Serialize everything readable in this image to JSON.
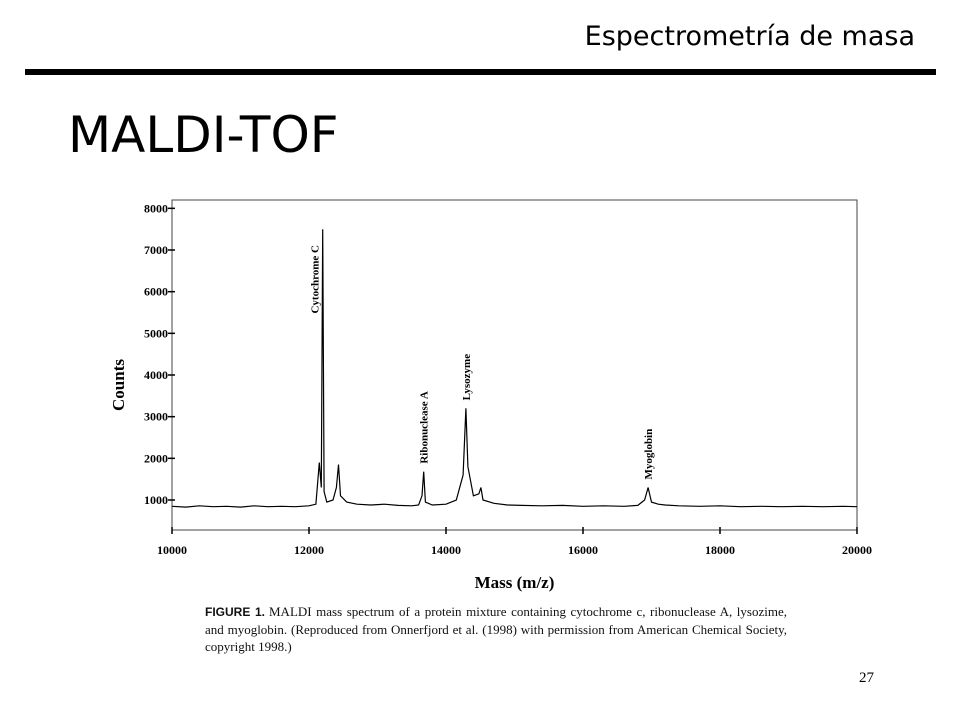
{
  "header": {
    "section": "Espectrometría de masa"
  },
  "title": "MALDI-TOF",
  "chart_data": {
    "type": "line",
    "x_label": "Mass (m/z)",
    "y_label": "Counts",
    "color": "#000000",
    "xlim": [
      10000,
      20000
    ],
    "xticks": [
      10000,
      12000,
      14000,
      16000,
      18000,
      20000
    ],
    "ylim": [
      280,
      8200
    ],
    "yticks": [
      1000,
      2000,
      3000,
      4000,
      5000,
      6000,
      7000,
      8000
    ],
    "x": [
      10000,
      10200,
      10400,
      10600,
      10800,
      11000,
      11200,
      11400,
      11600,
      11800,
      12000,
      12100,
      12150,
      12180,
      12200,
      12220,
      12260,
      12350,
      12400,
      12430,
      12460,
      12550,
      12700,
      12900,
      13100,
      13300,
      13500,
      13600,
      13650,
      13675,
      13700,
      13800,
      14000,
      14150,
      14250,
      14290,
      14320,
      14400,
      14480,
      14510,
      14540,
      14700,
      14900,
      15100,
      15400,
      15700,
      16000,
      16300,
      16600,
      16800,
      16900,
      16950,
      17000,
      17100,
      17200,
      17400,
      17700,
      18000,
      18300,
      18600,
      18900,
      19200,
      19500,
      19800,
      20000
    ],
    "values": [
      850,
      830,
      860,
      840,
      850,
      830,
      860,
      840,
      850,
      840,
      860,
      900,
      1900,
      1300,
      7500,
      1200,
      950,
      1000,
      1300,
      1850,
      1100,
      950,
      900,
      880,
      900,
      870,
      860,
      880,
      1100,
      1680,
      950,
      880,
      900,
      1000,
      1600,
      3200,
      1800,
      1100,
      1150,
      1300,
      1000,
      920,
      880,
      870,
      860,
      870,
      850,
      860,
      850,
      870,
      1000,
      1300,
      950,
      900,
      880,
      860,
      850,
      860,
      840,
      850,
      840,
      850,
      840,
      850,
      840
    ],
    "annotations": [
      {
        "text": "Cytochrome C",
        "x": 12200
      },
      {
        "text": "Ribonuclease A",
        "x": 13675
      },
      {
        "text": "Lysozyme",
        "x": 14290
      },
      {
        "text": "Myoglobin",
        "x": 16950
      }
    ]
  },
  "caption": {
    "label": "FIGURE 1.",
    "text": "MALDI mass spectrum of a protein mixture containing cytochrome c, ribonuclease A, lysozime, and myoglobin. (Reproduced from Onnerfjord et al. (1998) with permission from American Chemical Society, copyright 1998.)"
  },
  "page_number": "27"
}
